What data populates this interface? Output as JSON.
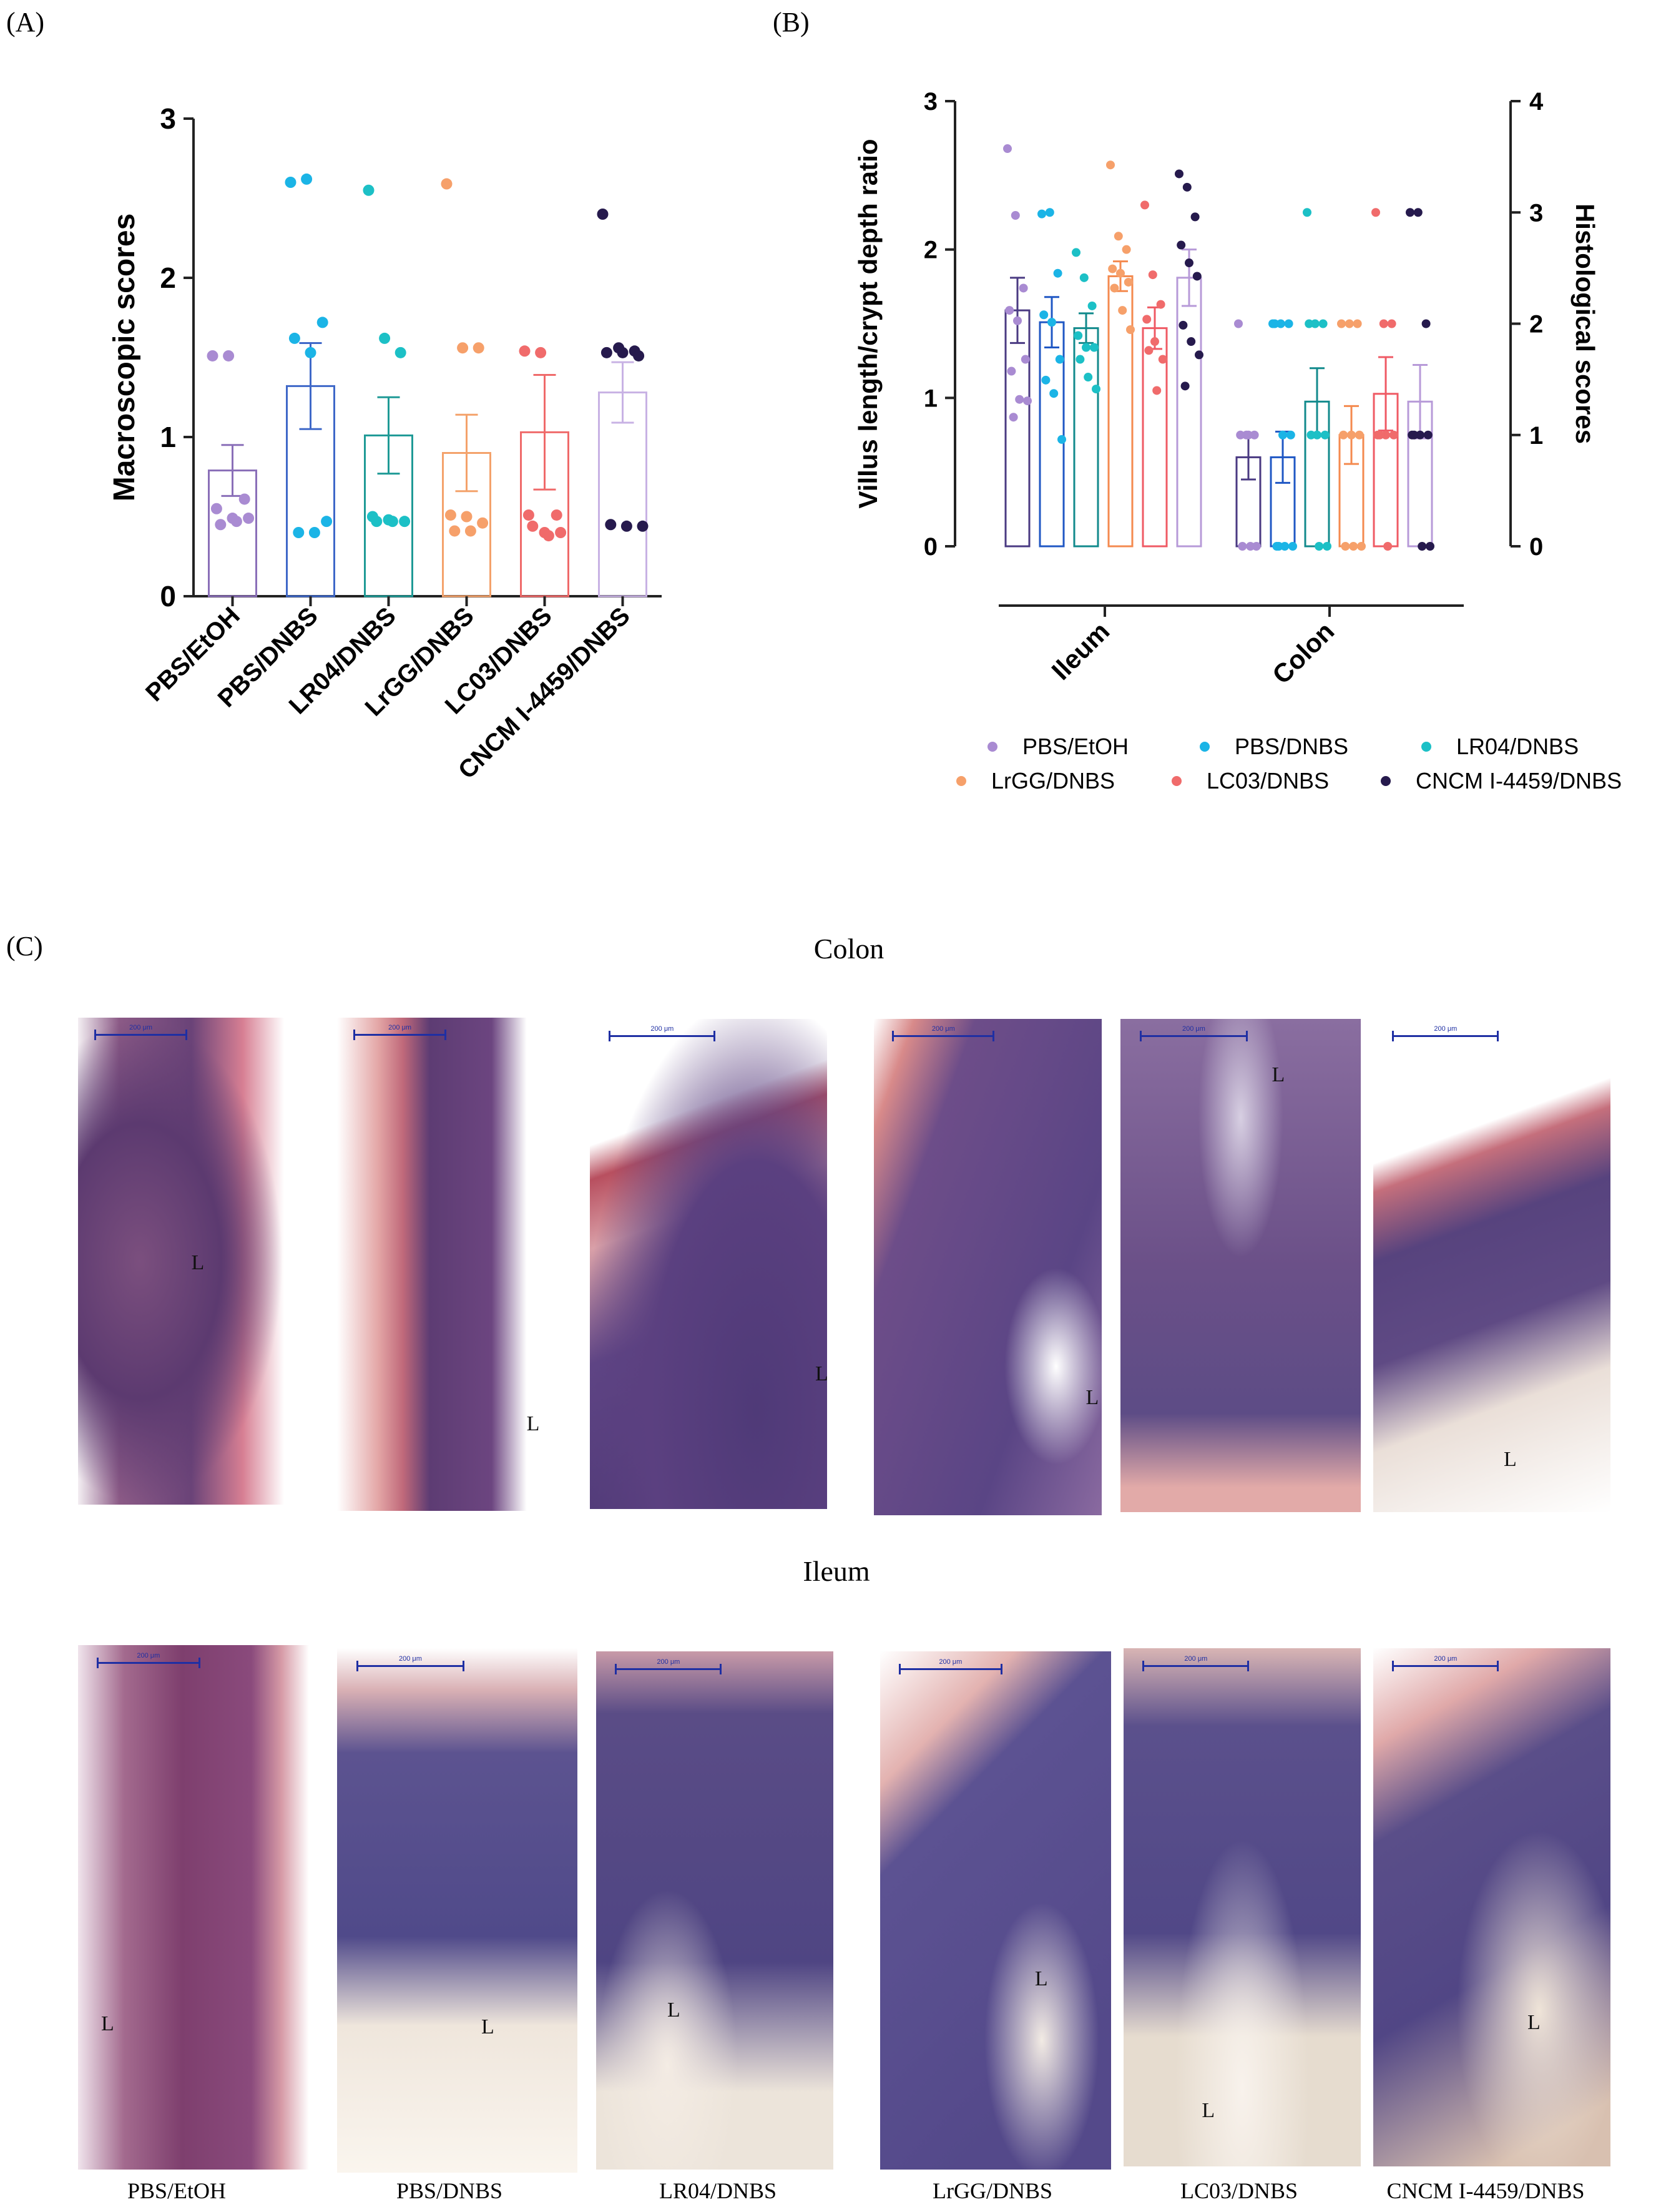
{
  "panels": {
    "a": "(A)",
    "b": "(B)",
    "c": "(C)"
  },
  "chart_data": [
    {
      "type": "bar",
      "panel": "A",
      "ylabel": "Macroscopic scores",
      "ylim": [
        0,
        3
      ],
      "yticks": [
        "0",
        "1",
        "2",
        "3"
      ],
      "categories": [
        "PBS/EtOH",
        "PBS/DNBS",
        "LR04/DNBS",
        "LrGG/DNBS",
        "LC03/DNBS",
        "CNCM I-4459/DNBS"
      ],
      "colors": [
        "#8a6fb8",
        "#3f68c8",
        "#1f9a96",
        "#f4a26b",
        "#ef6a6a",
        "#c8b2e4"
      ],
      "point_colors": [
        "#a98bd2",
        "#1bb4e6",
        "#1cc0c6",
        "#f6a06a",
        "#f06b6b",
        "#261a4d"
      ],
      "means": [
        0.79,
        1.32,
        1.01,
        0.9,
        1.03,
        1.28
      ],
      "sem": [
        0.16,
        0.27,
        0.24,
        0.24,
        0.36,
        0.19
      ],
      "points": [
        [
          1.51,
          1.51,
          0.61,
          0.55,
          0.49,
          0.49,
          0.45,
          0.47
        ],
        [
          2.6,
          2.62,
          1.72,
          1.62,
          1.53,
          0.47,
          0.4,
          0.4
        ],
        [
          2.55,
          1.62,
          1.53,
          0.5,
          0.48,
          0.47,
          0.47,
          0.47
        ],
        [
          2.59,
          1.56,
          1.56,
          0.51,
          0.5,
          0.46,
          0.41,
          0.41
        ],
        [
          1.54,
          1.53,
          0.51,
          0.51,
          0.4,
          0.4,
          0.44,
          0.38
        ],
        [
          2.4,
          1.56,
          1.54,
          1.53,
          1.53,
          1.51,
          0.45,
          0.44,
          0.44
        ]
      ]
    },
    {
      "type": "bar",
      "panel": "B",
      "ylabel": "Villus length/crypt depth ratio",
      "y2label": "Histological scores",
      "ylim": [
        0,
        3
      ],
      "y2lim": [
        0,
        4
      ],
      "yticks": [
        "0",
        "1",
        "2",
        "3"
      ],
      "y2ticks": [
        "0",
        "1",
        "2",
        "3",
        "4"
      ],
      "groups": [
        "Ileum",
        "Colon"
      ],
      "legend": [
        "PBS/EtOH",
        "PBS/DNBS",
        "LR04/DNBS",
        "LrGG/DNBS",
        "LC03/DNBS",
        "CNCM I-4459/DNBS"
      ],
      "colors": [
        "#4a3a82",
        "#1f57c4",
        "#128a8c",
        "#f48a4f",
        "#ef5a64",
        "#b79ad8"
      ],
      "point_colors": [
        "#a98bd2",
        "#1bb4e6",
        "#1cc0c6",
        "#f6a06a",
        "#f06b6b",
        "#261a4d"
      ],
      "ileum_means": [
        1.59,
        1.51,
        1.47,
        1.82,
        1.47,
        1.81
      ],
      "ileum_sem": [
        0.22,
        0.17,
        0.1,
        0.1,
        0.14,
        0.19
      ],
      "ileum_points": [
        [
          2.68,
          2.23,
          1.74,
          1.59,
          1.52,
          1.26,
          1.18,
          0.99,
          0.98,
          0.87
        ],
        [
          2.24,
          2.25,
          1.84,
          1.56,
          1.51,
          1.26,
          1.12,
          1.03,
          0.72
        ],
        [
          1.98,
          1.81,
          1.62,
          1.42,
          1.34,
          1.34,
          1.26,
          1.14,
          1.06
        ],
        [
          2.57,
          2.09,
          2.0,
          1.87,
          1.84,
          1.78,
          1.74,
          1.59,
          1.46
        ],
        [
          2.3,
          1.83,
          1.63,
          1.53,
          1.38,
          1.26,
          1.32,
          1.05
        ],
        [
          2.51,
          2.42,
          2.22,
          2.03,
          1.91,
          1.82,
          1.49,
          1.38,
          1.29,
          1.08
        ]
      ],
      "colon_means": [
        0.8,
        0.8,
        1.3,
        1.0,
        1.37,
        1.3
      ],
      "colon_sem": [
        0.2,
        0.23,
        0.3,
        0.26,
        0.33,
        0.33
      ],
      "colon_points": [
        [
          2.0,
          1.0,
          1.0,
          1.0,
          1.0,
          0,
          0,
          0
        ],
        [
          2.0,
          2.0,
          2.0,
          2.0,
          1.0,
          1.0,
          0,
          0,
          0,
          0
        ],
        [
          3.0,
          2.0,
          2.0,
          2.0,
          1.0,
          1.0,
          1.0,
          0,
          0
        ],
        [
          2.0,
          2.0,
          2.0,
          1.0,
          1.0,
          1.0,
          0,
          0,
          0
        ],
        [
          3.0,
          2.0,
          2.0,
          1.0,
          1.0,
          1.0,
          1.0,
          0
        ],
        [
          3.0,
          3.0,
          2.0,
          1.0,
          1.0,
          1.0,
          1.0,
          0,
          0
        ]
      ]
    }
  ],
  "histology": {
    "colon_title": "Colon",
    "ileum_title": "Ileum",
    "scale_text": "200 μm",
    "lumen": "L",
    "group_labels": [
      "PBS/EtOH",
      "PBS/DNBS",
      "LR04/DNBS",
      "LrGG/DNBS",
      "LC03/DNBS",
      "CNCM I-4459/DNBS"
    ]
  }
}
